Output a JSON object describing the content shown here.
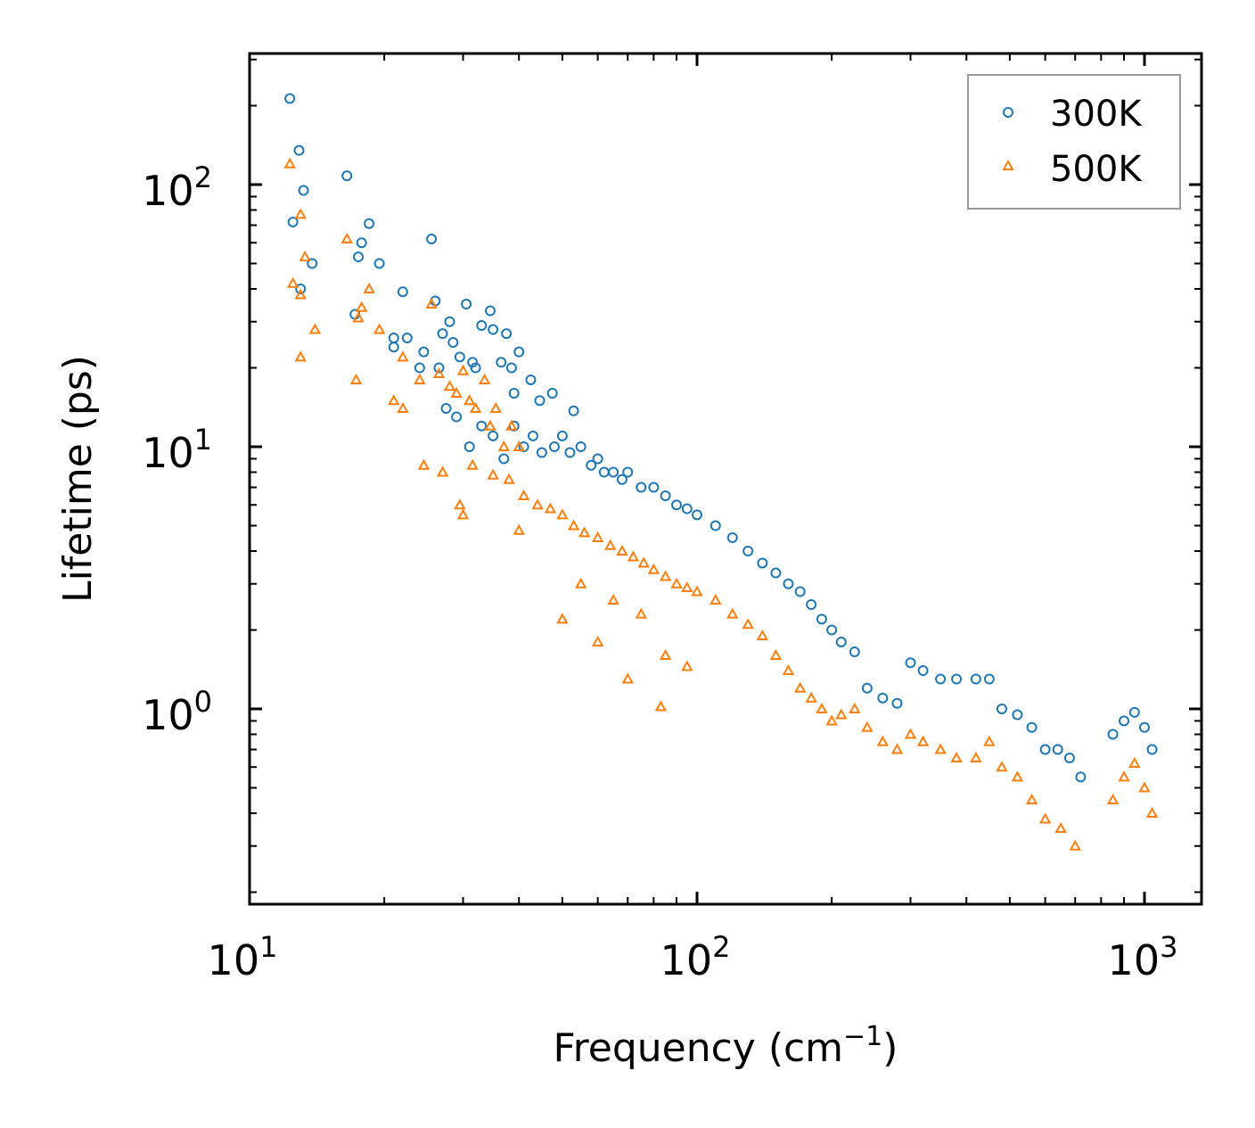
{
  "chart_data": {
    "type": "scatter",
    "title": "",
    "xlabel": "Frequency (cm",
    "xlabel_sup": "−1",
    "xlabel_end": ")",
    "ylabel": "Lifetime (ps)",
    "xscale": "log",
    "yscale": "log",
    "xlim": [
      10,
      1350
    ],
    "ylim": [
      0.18,
      300
    ],
    "x_ticks": [
      {
        "base": "10",
        "exp": "1",
        "value": 10
      },
      {
        "base": "10",
        "exp": "2",
        "value": 100
      },
      {
        "base": "10",
        "exp": "3",
        "value": 1000
      }
    ],
    "y_ticks": [
      {
        "base": "10",
        "exp": "0",
        "value": 1
      },
      {
        "base": "10",
        "exp": "1",
        "value": 10
      },
      {
        "base": "10",
        "exp": "2",
        "value": 100
      }
    ],
    "legend_location": "top-right",
    "series": [
      {
        "name": "300K",
        "marker": "circle",
        "color": "#1f77b4",
        "points": [
          [
            12.3,
            213
          ],
          [
            12.9,
            135
          ],
          [
            13.2,
            95
          ],
          [
            12.5,
            72
          ],
          [
            13.0,
            40
          ],
          [
            13.8,
            50
          ],
          [
            16.5,
            108
          ],
          [
            17.5,
            53
          ],
          [
            17.8,
            60
          ],
          [
            18.5,
            71
          ],
          [
            19.5,
            50
          ],
          [
            17.2,
            32
          ],
          [
            22.0,
            39
          ],
          [
            21.0,
            24
          ],
          [
            21.0,
            26
          ],
          [
            22.5,
            26
          ],
          [
            24.0,
            20
          ],
          [
            25.5,
            62
          ],
          [
            26.0,
            36
          ],
          [
            26.5,
            20
          ],
          [
            24.5,
            23
          ],
          [
            27.0,
            27
          ],
          [
            28.0,
            30
          ],
          [
            28.5,
            25
          ],
          [
            29.5,
            22
          ],
          [
            27.5,
            14
          ],
          [
            29.0,
            13
          ],
          [
            30.5,
            35
          ],
          [
            31.5,
            21
          ],
          [
            32.0,
            20
          ],
          [
            33.0,
            29
          ],
          [
            34.5,
            33
          ],
          [
            35.0,
            28
          ],
          [
            36.5,
            21
          ],
          [
            37.5,
            27
          ],
          [
            38.5,
            20
          ],
          [
            39.0,
            16
          ],
          [
            40.0,
            23
          ],
          [
            42.5,
            18
          ],
          [
            44.5,
            15
          ],
          [
            47.5,
            16
          ],
          [
            53.0,
            13.7
          ],
          [
            31.0,
            10
          ],
          [
            33.0,
            12
          ],
          [
            35.0,
            11
          ],
          [
            37.0,
            9
          ],
          [
            39.0,
            12
          ],
          [
            41.0,
            10
          ],
          [
            43.0,
            11
          ],
          [
            45.0,
            9.5
          ],
          [
            48.0,
            10
          ],
          [
            50.0,
            11
          ],
          [
            52.0,
            9.5
          ],
          [
            55.0,
            10
          ],
          [
            58.0,
            8.5
          ],
          [
            60.0,
            9
          ],
          [
            62.0,
            8
          ],
          [
            65.0,
            8
          ],
          [
            68.0,
            7.5
          ],
          [
            70.0,
            8
          ],
          [
            75.0,
            7
          ],
          [
            80.0,
            7
          ],
          [
            85.0,
            6.5
          ],
          [
            90.0,
            6
          ],
          [
            95.0,
            5.8
          ],
          [
            100.0,
            5.5
          ],
          [
            110.0,
            5
          ],
          [
            120.0,
            4.5
          ],
          [
            130.0,
            4
          ],
          [
            140.0,
            3.6
          ],
          [
            150.0,
            3.3
          ],
          [
            160.0,
            3
          ],
          [
            170.0,
            2.8
          ],
          [
            180.0,
            2.5
          ],
          [
            190.0,
            2.2
          ],
          [
            200.0,
            2.0
          ],
          [
            210.0,
            1.8
          ],
          [
            225.0,
            1.65
          ],
          [
            240.0,
            1.2
          ],
          [
            260.0,
            1.1
          ],
          [
            280.0,
            1.05
          ],
          [
            300.0,
            1.5
          ],
          [
            320.0,
            1.4
          ],
          [
            350.0,
            1.3
          ],
          [
            380.0,
            1.3
          ],
          [
            420.0,
            1.3
          ],
          [
            450.0,
            1.3
          ],
          [
            480.0,
            1.0
          ],
          [
            520.0,
            0.95
          ],
          [
            560.0,
            0.85
          ],
          [
            600.0,
            0.7
          ],
          [
            640.0,
            0.7
          ],
          [
            680.0,
            0.65
          ],
          [
            720.0,
            0.55
          ],
          [
            850.0,
            0.8
          ],
          [
            900.0,
            0.9
          ],
          [
            950.0,
            0.97
          ],
          [
            1000.0,
            0.85
          ],
          [
            1040.0,
            0.7
          ]
        ]
      },
      {
        "name": "500K",
        "marker": "triangle",
        "color": "#ff7f0e",
        "points": [
          [
            12.3,
            120
          ],
          [
            13.0,
            77
          ],
          [
            13.3,
            53
          ],
          [
            12.5,
            42
          ],
          [
            13.0,
            38
          ],
          [
            14.0,
            28
          ],
          [
            13.0,
            22
          ],
          [
            16.5,
            62
          ],
          [
            17.5,
            31
          ],
          [
            17.8,
            34
          ],
          [
            18.5,
            40
          ],
          [
            19.5,
            28
          ],
          [
            17.3,
            18
          ],
          [
            22.0,
            22
          ],
          [
            21.0,
            15
          ],
          [
            22.0,
            14
          ],
          [
            24.0,
            18
          ],
          [
            25.5,
            35
          ],
          [
            26.5,
            19
          ],
          [
            28.0,
            17
          ],
          [
            29.0,
            16
          ],
          [
            30.0,
            19.5
          ],
          [
            31.0,
            15
          ],
          [
            32.0,
            14
          ],
          [
            33.5,
            18
          ],
          [
            34.5,
            12
          ],
          [
            35.5,
            14
          ],
          [
            37.0,
            10
          ],
          [
            38.5,
            12
          ],
          [
            40.0,
            10
          ],
          [
            24.5,
            8.5
          ],
          [
            27.0,
            8
          ],
          [
            29.5,
            6
          ],
          [
            31.5,
            8.5
          ],
          [
            35.0,
            7.8
          ],
          [
            38.0,
            7.5
          ],
          [
            41.0,
            6.5
          ],
          [
            44.0,
            6
          ],
          [
            47.0,
            5.8
          ],
          [
            50.0,
            5.5
          ],
          [
            53.0,
            5
          ],
          [
            56.0,
            4.7
          ],
          [
            60.0,
            4.5
          ],
          [
            64.0,
            4.2
          ],
          [
            68.0,
            4
          ],
          [
            72.0,
            3.8
          ],
          [
            76.0,
            3.6
          ],
          [
            80.0,
            3.4
          ],
          [
            85.0,
            3.2
          ],
          [
            90.0,
            3
          ],
          [
            95.0,
            2.9
          ],
          [
            100.0,
            2.8
          ],
          [
            110.0,
            2.6
          ],
          [
            120.0,
            2.3
          ],
          [
            130.0,
            2.1
          ],
          [
            140.0,
            1.9
          ],
          [
            150.0,
            1.6
          ],
          [
            160.0,
            1.4
          ],
          [
            170.0,
            1.2
          ],
          [
            180.0,
            1.1
          ],
          [
            190.0,
            1.0
          ],
          [
            200.0,
            0.9
          ],
          [
            210.0,
            0.95
          ],
          [
            225.0,
            1.0
          ],
          [
            240.0,
            0.85
          ],
          [
            260.0,
            0.75
          ],
          [
            280.0,
            0.7
          ],
          [
            300.0,
            0.8
          ],
          [
            320.0,
            0.75
          ],
          [
            350.0,
            0.7
          ],
          [
            380.0,
            0.65
          ],
          [
            420.0,
            0.65
          ],
          [
            450.0,
            0.75
          ],
          [
            480.0,
            0.6
          ],
          [
            520.0,
            0.55
          ],
          [
            560.0,
            0.45
          ],
          [
            600.0,
            0.38
          ],
          [
            650.0,
            0.35
          ],
          [
            700.0,
            0.3
          ],
          [
            850.0,
            0.45
          ],
          [
            900.0,
            0.55
          ],
          [
            950.0,
            0.62
          ],
          [
            1000.0,
            0.5
          ],
          [
            1040.0,
            0.4
          ],
          [
            30.0,
            5.5
          ],
          [
            40.0,
            4.8
          ],
          [
            55.0,
            3.0
          ],
          [
            65.0,
            2.6
          ],
          [
            75.0,
            2.3
          ],
          [
            85.0,
            1.6
          ],
          [
            95.0,
            1.45
          ],
          [
            70.0,
            1.3
          ],
          [
            83.0,
            1.02
          ],
          [
            60.0,
            1.8
          ],
          [
            50.0,
            2.2
          ]
        ]
      }
    ]
  }
}
